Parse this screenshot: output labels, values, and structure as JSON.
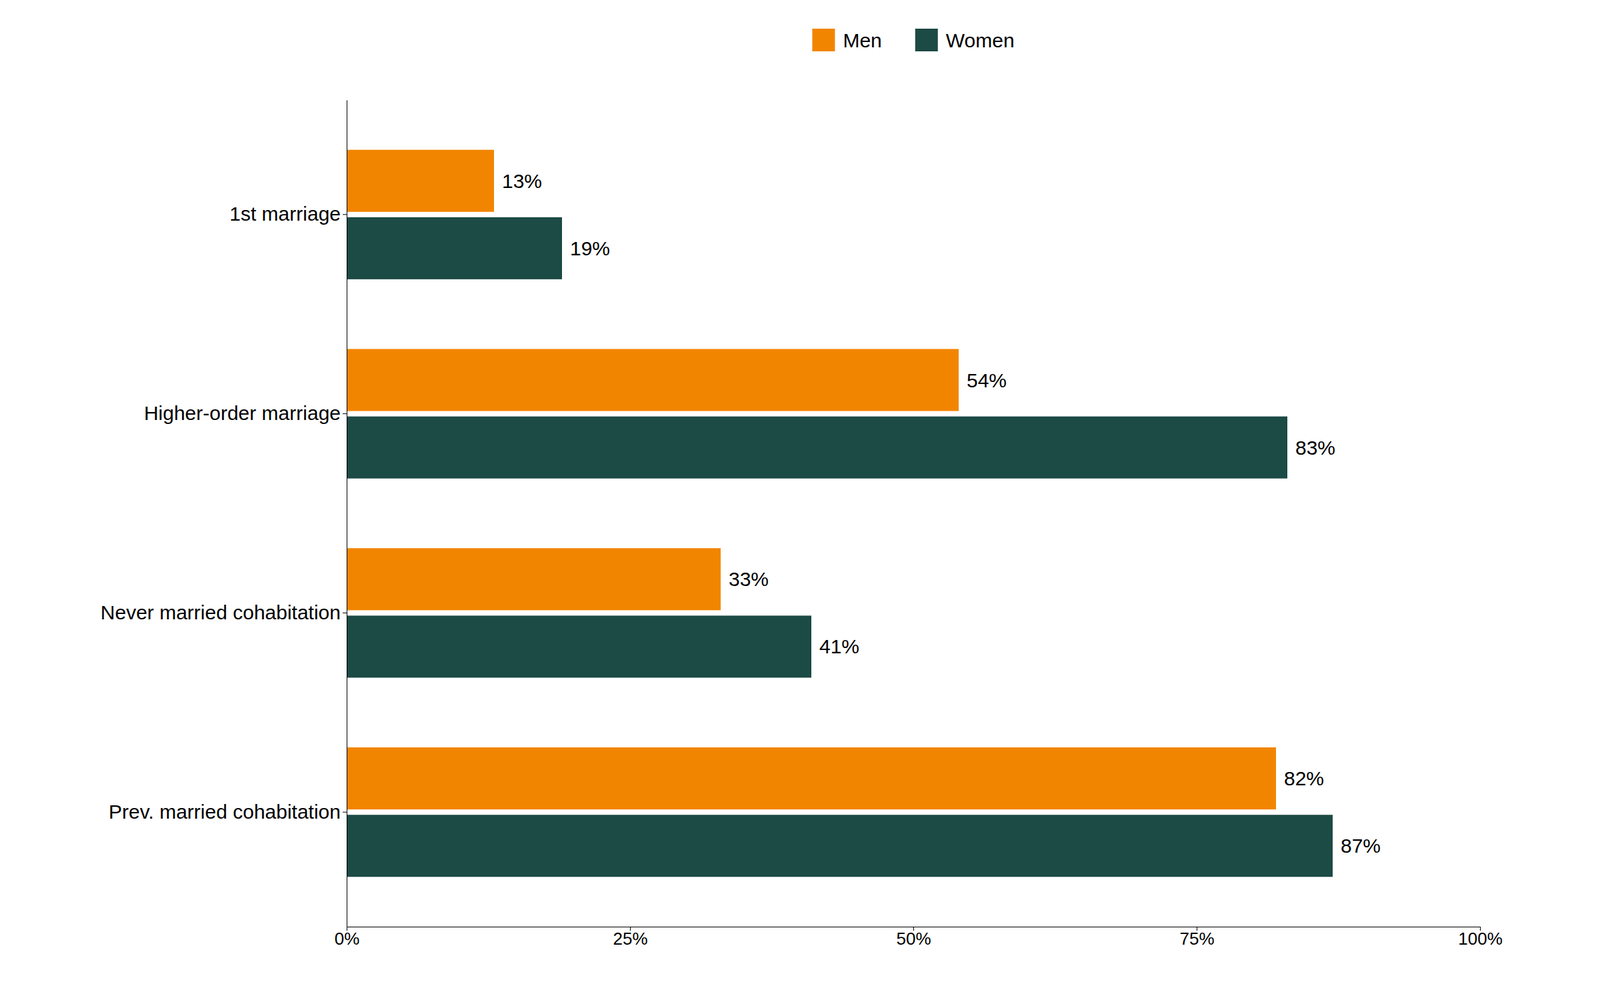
{
  "chart_data": {
    "type": "bar",
    "orientation": "horizontal",
    "categories": [
      "1st marriage",
      "Higher-order marriage",
      "Never married cohabitation",
      "Prev. married cohabitation"
    ],
    "series": [
      {
        "name": "Men",
        "color": "#F28500",
        "values": [
          13,
          54,
          33,
          82
        ],
        "value_labels": [
          "13%",
          "54%",
          "33%",
          "82%"
        ]
      },
      {
        "name": "Women",
        "color": "#1C4A45",
        "values": [
          19,
          83,
          41,
          87
        ],
        "value_labels": [
          "19%",
          "83%",
          "41%",
          "87%"
        ]
      }
    ],
    "xlim": [
      0,
      100
    ],
    "xticks": [
      {
        "value": 0,
        "label": "0%"
      },
      {
        "value": 25,
        "label": "25%"
      },
      {
        "value": 50,
        "label": "50%"
      },
      {
        "value": 75,
        "label": "75%"
      },
      {
        "value": 100,
        "label": "100%"
      }
    ],
    "grid": false,
    "legend": "top",
    "data_labels": true
  }
}
